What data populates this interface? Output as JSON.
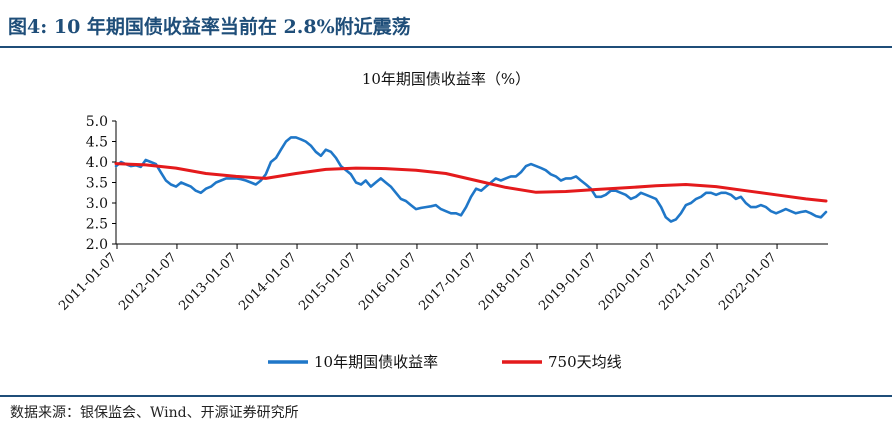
{
  "figure": {
    "title": "图4:  10 年期国债收益率当前在 2.8%附近震荡",
    "source": "数据来源：银保监会、Wind、开源证券研究所"
  },
  "colors": {
    "accent": "#1f4e79",
    "yield": "#1f77c8",
    "ma": "#e41a1c"
  },
  "chart_data": {
    "type": "line",
    "title": "10年期国债收益率（%）",
    "xlabel": "",
    "ylabel": "",
    "ylim": [
      2.0,
      5.0
    ],
    "yticks": [
      "2.0",
      "2.5",
      "3.0",
      "3.5",
      "4.0",
      "4.5",
      "5.0"
    ],
    "xlim": [
      "2011-01-01",
      "2022-11-01"
    ],
    "xticks": [
      "2011-01-07",
      "2012-01-07",
      "2013-01-07",
      "2014-01-07",
      "2015-01-07",
      "2016-01-07",
      "2017-01-07",
      "2018-01-07",
      "2019-01-07",
      "2020-01-07",
      "2021-01-07",
      "2022-01-07"
    ],
    "grid": false,
    "legend": "bottom",
    "series": [
      {
        "name": "10年期国债收益率",
        "color": "#1f77c8",
        "x": [
          "2011-01-01",
          "2011-02-01",
          "2011-03-01",
          "2011-04-01",
          "2011-05-01",
          "2011-06-01",
          "2011-07-01",
          "2011-08-01",
          "2011-09-01",
          "2011-10-01",
          "2011-11-01",
          "2011-12-01",
          "2012-01-01",
          "2012-02-01",
          "2012-03-01",
          "2012-04-01",
          "2012-05-01",
          "2012-06-01",
          "2012-07-01",
          "2012-08-01",
          "2012-09-01",
          "2012-10-01",
          "2012-11-01",
          "2012-12-01",
          "2013-01-01",
          "2013-02-01",
          "2013-03-01",
          "2013-04-01",
          "2013-05-01",
          "2013-06-01",
          "2013-07-01",
          "2013-08-01",
          "2013-09-01",
          "2013-10-01",
          "2013-11-01",
          "2013-12-01",
          "2014-01-01",
          "2014-02-01",
          "2014-03-01",
          "2014-04-01",
          "2014-05-01",
          "2014-06-01",
          "2014-07-01",
          "2014-08-01",
          "2014-09-01",
          "2014-10-01",
          "2014-11-01",
          "2014-12-01",
          "2015-01-01",
          "2015-02-01",
          "2015-03-01",
          "2015-04-01",
          "2015-05-01",
          "2015-06-01",
          "2015-07-01",
          "2015-08-01",
          "2015-09-01",
          "2015-10-01",
          "2015-11-01",
          "2015-12-01",
          "2016-01-01",
          "2016-02-01",
          "2016-03-01",
          "2016-04-01",
          "2016-05-01",
          "2016-06-01",
          "2016-07-01",
          "2016-08-01",
          "2016-09-01",
          "2016-10-01",
          "2016-11-01",
          "2016-12-01",
          "2017-01-01",
          "2017-02-01",
          "2017-03-01",
          "2017-04-01",
          "2017-05-01",
          "2017-06-01",
          "2017-07-01",
          "2017-08-01",
          "2017-09-01",
          "2017-10-01",
          "2017-11-01",
          "2017-12-01",
          "2018-01-01",
          "2018-02-01",
          "2018-03-01",
          "2018-04-01",
          "2018-05-01",
          "2018-06-01",
          "2018-07-01",
          "2018-08-01",
          "2018-09-01",
          "2018-10-01",
          "2018-11-01",
          "2018-12-01",
          "2019-01-01",
          "2019-02-01",
          "2019-03-01",
          "2019-04-01",
          "2019-05-01",
          "2019-06-01",
          "2019-07-01",
          "2019-08-01",
          "2019-09-01",
          "2019-10-01",
          "2019-11-01",
          "2019-12-01",
          "2020-01-01",
          "2020-02-01",
          "2020-03-01",
          "2020-04-01",
          "2020-05-01",
          "2020-06-01",
          "2020-07-01",
          "2020-08-01",
          "2020-09-01",
          "2020-10-01",
          "2020-11-01",
          "2020-12-01",
          "2021-01-01",
          "2021-02-01",
          "2021-03-01",
          "2021-04-01",
          "2021-05-01",
          "2021-06-01",
          "2021-07-01",
          "2021-08-01",
          "2021-09-01",
          "2021-10-01",
          "2021-11-01",
          "2021-12-01",
          "2022-01-01",
          "2022-02-01",
          "2022-03-01",
          "2022-04-01",
          "2022-05-01",
          "2022-06-01",
          "2022-07-01",
          "2022-08-01",
          "2022-09-01",
          "2022-10-01",
          "2022-11-01"
        ],
        "y": [
          3.9,
          4.0,
          3.95,
          3.9,
          3.92,
          3.88,
          4.05,
          4.0,
          3.95,
          3.75,
          3.55,
          3.45,
          3.4,
          3.5,
          3.45,
          3.4,
          3.3,
          3.25,
          3.35,
          3.4,
          3.5,
          3.55,
          3.6,
          3.6,
          3.6,
          3.58,
          3.55,
          3.5,
          3.45,
          3.55,
          3.7,
          4.0,
          4.1,
          4.3,
          4.5,
          4.6,
          4.6,
          4.55,
          4.5,
          4.4,
          4.25,
          4.15,
          4.3,
          4.25,
          4.1,
          3.9,
          3.8,
          3.7,
          3.5,
          3.45,
          3.55,
          3.4,
          3.5,
          3.6,
          3.5,
          3.4,
          3.25,
          3.1,
          3.05,
          2.95,
          2.85,
          2.88,
          2.9,
          2.92,
          2.95,
          2.85,
          2.8,
          2.75,
          2.75,
          2.7,
          2.9,
          3.15,
          3.35,
          3.3,
          3.4,
          3.5,
          3.6,
          3.55,
          3.6,
          3.65,
          3.65,
          3.75,
          3.9,
          3.95,
          3.9,
          3.85,
          3.8,
          3.7,
          3.65,
          3.55,
          3.6,
          3.6,
          3.65,
          3.55,
          3.45,
          3.35,
          3.15,
          3.15,
          3.2,
          3.3,
          3.3,
          3.25,
          3.2,
          3.1,
          3.15,
          3.25,
          3.2,
          3.15,
          3.1,
          2.9,
          2.65,
          2.55,
          2.6,
          2.75,
          2.95,
          3.0,
          3.1,
          3.15,
          3.25,
          3.25,
          3.2,
          3.25,
          3.25,
          3.2,
          3.1,
          3.15,
          3.0,
          2.9,
          2.9,
          2.95,
          2.9,
          2.8,
          2.75,
          2.8,
          2.85,
          2.8,
          2.75,
          2.78,
          2.8,
          2.75,
          2.68,
          2.65,
          2.78
        ]
      },
      {
        "name": "750天均线",
        "color": "#e41a1c",
        "x": [
          "2011-01-01",
          "2011-07-01",
          "2012-01-01",
          "2012-07-01",
          "2013-01-01",
          "2013-07-01",
          "2014-01-01",
          "2014-07-01",
          "2015-01-01",
          "2015-07-01",
          "2016-01-01",
          "2016-07-01",
          "2017-01-01",
          "2017-07-01",
          "2018-01-01",
          "2018-07-01",
          "2019-01-01",
          "2019-07-01",
          "2020-01-01",
          "2020-07-01",
          "2021-01-01",
          "2021-07-01",
          "2022-01-01",
          "2022-07-01",
          "2022-11-01"
        ],
        "y": [
          3.96,
          3.93,
          3.85,
          3.72,
          3.65,
          3.6,
          3.72,
          3.82,
          3.85,
          3.84,
          3.8,
          3.72,
          3.55,
          3.38,
          3.26,
          3.28,
          3.33,
          3.37,
          3.42,
          3.45,
          3.4,
          3.3,
          3.2,
          3.1,
          3.05
        ]
      }
    ]
  }
}
